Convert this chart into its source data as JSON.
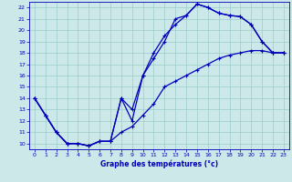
{
  "title": "Graphe des températures (°c)",
  "bg_color": "#cce8e8",
  "line_color": "#0000bb",
  "grid_color": "#99cccc",
  "xlim": [
    -0.5,
    23.5
  ],
  "ylim": [
    9.5,
    22.5
  ],
  "xticks": [
    0,
    1,
    2,
    3,
    4,
    5,
    6,
    7,
    8,
    9,
    10,
    11,
    12,
    13,
    14,
    15,
    16,
    17,
    18,
    19,
    20,
    21,
    22,
    23
  ],
  "yticks": [
    10,
    11,
    12,
    13,
    14,
    15,
    16,
    17,
    18,
    19,
    20,
    21,
    22
  ],
  "series1_x": [
    0,
    1,
    2,
    3,
    4,
    5,
    6,
    7,
    8,
    9,
    10,
    11,
    12,
    13,
    14,
    15,
    16,
    17,
    18,
    19,
    20,
    21,
    22,
    23
  ],
  "series1_y": [
    14,
    12.5,
    11,
    10,
    10,
    9.8,
    10.2,
    10.2,
    14,
    12,
    16,
    17.5,
    19,
    21,
    21.3,
    22.3,
    22,
    21.5,
    21.3,
    21.2,
    20.5,
    19,
    18.0,
    18.0
  ],
  "series2_x": [
    0,
    1,
    2,
    3,
    4,
    5,
    6,
    7,
    8,
    9,
    10,
    11,
    12,
    13,
    14,
    15,
    16,
    17,
    18,
    19,
    20,
    21,
    22,
    23
  ],
  "series2_y": [
    14,
    12.5,
    11,
    10,
    10,
    9.8,
    10.2,
    10.2,
    11,
    11.5,
    12.5,
    13.5,
    15,
    15.5,
    16,
    16.5,
    17,
    17.5,
    17.8,
    18,
    18.2,
    18.2,
    18.0,
    18.0
  ],
  "series3_x": [
    0,
    1,
    2,
    3,
    4,
    5,
    6,
    7,
    8,
    9,
    10,
    11,
    12,
    13,
    14,
    15,
    16,
    17,
    18,
    19,
    20,
    21,
    22,
    23
  ],
  "series3_y": [
    14,
    12.5,
    11,
    10,
    10,
    9.8,
    10.2,
    10.2,
    14,
    13,
    16,
    18,
    19.5,
    20.5,
    21.3,
    22.3,
    22,
    21.5,
    21.3,
    21.2,
    20.5,
    19,
    18.0,
    18.0
  ]
}
